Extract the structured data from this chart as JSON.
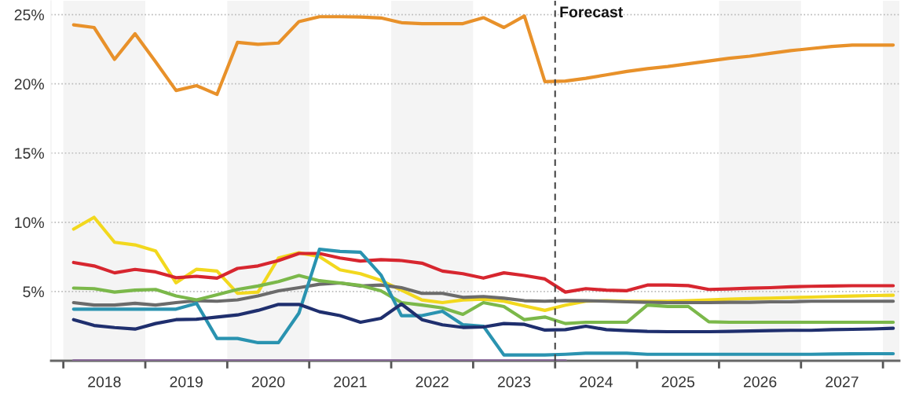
{
  "chart_data": {
    "type": "line",
    "x": [
      2018.125,
      2018.375,
      2018.625,
      2018.875,
      2019.125,
      2019.375,
      2019.625,
      2019.875,
      2020.125,
      2020.375,
      2020.625,
      2020.875,
      2021.125,
      2021.375,
      2021.625,
      2021.875,
      2022.125,
      2022.375,
      2022.625,
      2022.875,
      2023.125,
      2023.375,
      2023.625,
      2023.875,
      2024.125,
      2024.375,
      2024.625,
      2024.875,
      2025.125,
      2025.375,
      2025.625,
      2025.875,
      2026.125,
      2026.375,
      2026.625,
      2026.875,
      2027.125,
      2027.375,
      2027.625,
      2027.875,
      2028.125
    ],
    "series": [
      {
        "color": "#e8912a",
        "values": [
          24.26,
          24.07,
          21.77,
          23.62,
          21.6,
          19.52,
          19.87,
          19.24,
          23.0,
          22.86,
          22.95,
          24.5,
          24.85,
          24.85,
          24.83,
          24.76,
          24.42,
          24.35,
          24.35,
          24.35,
          24.78,
          24.07,
          24.9,
          20.16,
          20.2,
          20.4,
          20.65,
          20.9,
          21.1,
          21.25,
          21.45,
          21.65,
          21.85,
          22.0,
          22.2,
          22.4,
          22.55,
          22.7,
          22.8,
          22.8,
          22.8
        ]
      },
      {
        "color": "#f2d81e",
        "values": [
          9.51,
          10.36,
          8.56,
          8.37,
          7.94,
          5.63,
          6.61,
          6.48,
          4.87,
          4.96,
          7.42,
          7.8,
          7.52,
          6.57,
          6.29,
          5.8,
          5.1,
          4.39,
          4.2,
          4.39,
          4.45,
          4.3,
          3.96,
          3.64,
          4.02,
          4.3,
          4.34,
          4.3,
          4.3,
          4.3,
          4.34,
          4.39,
          4.45,
          4.49,
          4.52,
          4.56,
          4.6,
          4.64,
          4.68,
          4.71,
          4.73
        ]
      },
      {
        "color": "#d7262f",
        "values": [
          7.1,
          6.85,
          6.35,
          6.6,
          6.42,
          6.0,
          6.1,
          5.97,
          6.67,
          6.85,
          7.24,
          7.75,
          7.75,
          7.42,
          7.2,
          7.3,
          7.24,
          7.05,
          6.48,
          6.29,
          5.97,
          6.35,
          6.16,
          5.91,
          4.96,
          5.21,
          5.1,
          5.06,
          5.47,
          5.47,
          5.43,
          5.15,
          5.19,
          5.24,
          5.28,
          5.34,
          5.38,
          5.4,
          5.42,
          5.42,
          5.42
        ]
      },
      {
        "color": "#6b6b6b",
        "values": [
          4.2,
          4.02,
          4.02,
          4.15,
          4.02,
          4.2,
          4.34,
          4.3,
          4.4,
          4.68,
          5.05,
          5.28,
          5.53,
          5.62,
          5.4,
          5.47,
          5.28,
          4.87,
          4.87,
          4.58,
          4.64,
          4.52,
          4.34,
          4.3,
          4.35,
          4.34,
          4.3,
          4.26,
          4.22,
          4.2,
          4.2,
          4.2,
          4.22,
          4.22,
          4.26,
          4.26,
          4.3,
          4.3,
          4.3,
          4.3,
          4.3
        ]
      },
      {
        "color": "#7bb84a",
        "values": [
          5.25,
          5.21,
          4.96,
          5.1,
          5.15,
          4.68,
          4.4,
          4.77,
          5.15,
          5.4,
          5.72,
          6.16,
          5.78,
          5.62,
          5.44,
          5.05,
          4.2,
          4.02,
          3.82,
          3.35,
          4.2,
          3.92,
          2.97,
          3.16,
          2.69,
          2.78,
          2.78,
          2.78,
          4.02,
          3.92,
          3.92,
          2.82,
          2.78,
          2.78,
          2.78,
          2.78,
          2.78,
          2.78,
          2.78,
          2.78,
          2.78
        ]
      },
      {
        "color": "#2a93b0",
        "values": [
          3.73,
          3.73,
          3.73,
          3.73,
          3.73,
          3.73,
          4.15,
          1.61,
          1.61,
          1.31,
          1.31,
          3.45,
          8.05,
          7.9,
          7.84,
          6.2,
          3.26,
          3.26,
          3.58,
          2.6,
          2.5,
          0.42,
          0.42,
          0.42,
          0.47,
          0.55,
          0.55,
          0.55,
          0.47,
          0.47,
          0.47,
          0.47,
          0.47,
          0.47,
          0.47,
          0.47,
          0.47,
          0.49,
          0.5,
          0.51,
          0.51
        ]
      },
      {
        "color": "#1f2f6e",
        "values": [
          2.97,
          2.55,
          2.4,
          2.29,
          2.69,
          2.97,
          3.0,
          3.16,
          3.31,
          3.64,
          4.07,
          4.07,
          3.54,
          3.26,
          2.78,
          3.07,
          4.1,
          2.97,
          2.6,
          2.41,
          2.44,
          2.69,
          2.63,
          2.22,
          2.25,
          2.5,
          2.25,
          2.18,
          2.12,
          2.1,
          2.1,
          2.1,
          2.12,
          2.15,
          2.18,
          2.2,
          2.2,
          2.25,
          2.27,
          2.3,
          2.35
        ]
      },
      {
        "color": "#8a6b9a",
        "values": [
          0,
          0,
          0,
          0,
          0,
          0,
          0,
          0,
          0,
          0,
          0,
          0,
          0,
          0,
          0,
          0,
          0,
          0,
          0,
          0,
          0,
          0,
          0,
          0,
          0,
          null,
          null,
          null,
          null,
          null,
          null,
          null,
          null,
          null,
          null,
          null,
          null,
          null,
          null,
          null,
          null
        ]
      }
    ],
    "xlim": [
      2017.85,
      2028.2
    ],
    "xticks": [
      {
        "value": 2018,
        "label": null
      },
      {
        "value": 2018.5,
        "label": "2018"
      },
      {
        "value": 2019,
        "label": null
      },
      {
        "value": 2019.5,
        "label": "2019"
      },
      {
        "value": 2020,
        "label": null
      },
      {
        "value": 2020.5,
        "label": "2020"
      },
      {
        "value": 2021,
        "label": null
      },
      {
        "value": 2021.5,
        "label": "2021"
      },
      {
        "value": 2022,
        "label": null
      },
      {
        "value": 2022.5,
        "label": "2022"
      },
      {
        "value": 2023,
        "label": null
      },
      {
        "value": 2023.5,
        "label": "2023"
      },
      {
        "value": 2024,
        "label": null
      },
      {
        "value": 2024.5,
        "label": "2024"
      },
      {
        "value": 2025,
        "label": null
      },
      {
        "value": 2025.5,
        "label": "2025"
      },
      {
        "value": 2026,
        "label": null
      },
      {
        "value": 2026.5,
        "label": "2026"
      },
      {
        "value": 2027,
        "label": null
      },
      {
        "value": 2027.5,
        "label": "2027"
      },
      {
        "value": 2028,
        "label": null
      }
    ],
    "ylim": [
      0,
      26
    ],
    "yticks": [
      {
        "value": 5,
        "label": "5%"
      },
      {
        "value": 10,
        "label": "10%"
      },
      {
        "value": 15,
        "label": "15%"
      },
      {
        "value": 20,
        "label": "20%"
      },
      {
        "value": 25,
        "label": "25%"
      }
    ],
    "grid": "y",
    "line_style": "solid",
    "ref_lines": [
      {
        "axis": "x",
        "value": 2024,
        "label": "Forecast",
        "color": "#444444",
        "line_style": "dashed"
      }
    ],
    "bands": [
      {
        "axis": "x",
        "from": 2018,
        "to": 2019,
        "color": "#f4f4f4"
      },
      {
        "axis": "x",
        "from": 2020,
        "to": 2021,
        "color": "#f4f4f4"
      },
      {
        "axis": "x",
        "from": 2022,
        "to": 2023,
        "color": "#f4f4f4"
      },
      {
        "axis": "x",
        "from": 2026,
        "to": 2027,
        "color": "#f4f4f4"
      },
      {
        "axis": "x",
        "from": 2028,
        "to": 2028.2,
        "color": "#f4f4f4"
      }
    ]
  }
}
